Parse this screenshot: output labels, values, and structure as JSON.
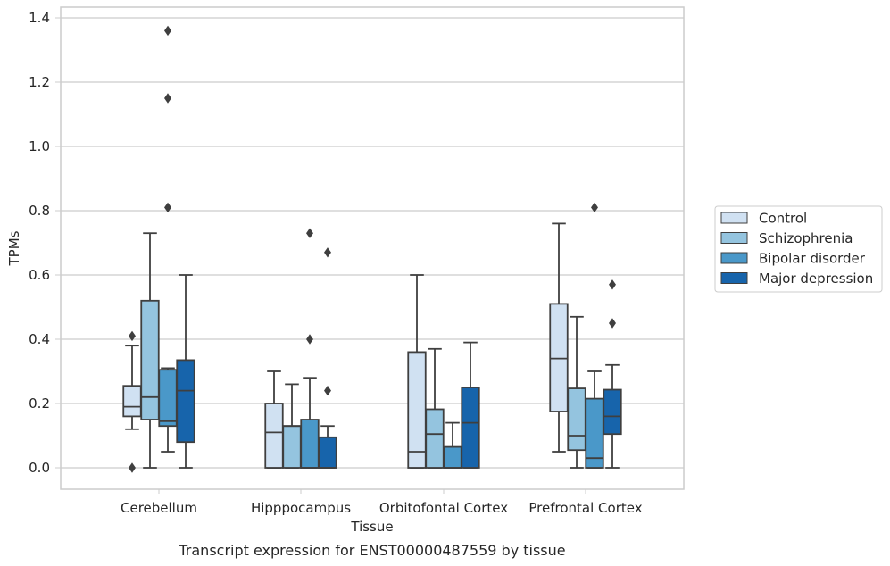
{
  "chart_data": {
    "type": "box",
    "xlabel": "Tissue",
    "ylabel": "TPMs",
    "caption": "Transcript expression for ENST00000487559 by tissue",
    "ylim": [
      -0.065,
      1.43
    ],
    "yticks": [
      0.0,
      0.2,
      0.4,
      0.6,
      0.8,
      1.0,
      1.2,
      1.4
    ],
    "ytick_labels": [
      "0.0",
      "0.2",
      "0.4",
      "0.6",
      "0.8",
      "1.0",
      "1.2",
      "1.4"
    ],
    "grid": "horizontal",
    "legend_placement": "right",
    "categories": [
      "Cerebellum",
      "Hipppocampus",
      "Orbitofontal Cortex",
      "Prefrontal Cortex"
    ],
    "series": [
      {
        "name": "Control",
        "color": "#d0e1f2",
        "boxes": [
          {
            "whisker_low": 0.12,
            "q1": 0.16,
            "median": 0.19,
            "q3": 0.255,
            "whisker_high": 0.38,
            "outliers": [
              0.41,
              0.0
            ]
          },
          {
            "whisker_low": 0.0,
            "q1": 0.0,
            "median": 0.11,
            "q3": 0.2,
            "whisker_high": 0.3,
            "outliers": []
          },
          {
            "whisker_low": 0.0,
            "q1": 0.0,
            "median": 0.05,
            "q3": 0.36,
            "whisker_high": 0.6,
            "outliers": []
          },
          {
            "whisker_low": 0.05,
            "q1": 0.175,
            "median": 0.34,
            "q3": 0.51,
            "whisker_high": 0.76,
            "outliers": []
          }
        ]
      },
      {
        "name": "Schizophrenia",
        "color": "#94c4df",
        "boxes": [
          {
            "whisker_low": 0.0,
            "q1": 0.15,
            "median": 0.22,
            "q3": 0.52,
            "whisker_high": 0.73,
            "outliers": []
          },
          {
            "whisker_low": 0.0,
            "q1": 0.0,
            "median": 0.13,
            "q3": 0.13,
            "whisker_high": 0.26,
            "outliers": []
          },
          {
            "whisker_low": 0.0,
            "q1": 0.0,
            "median": 0.105,
            "q3": 0.182,
            "whisker_high": 0.37,
            "outliers": []
          },
          {
            "whisker_low": 0.0,
            "q1": 0.055,
            "median": 0.1,
            "q3": 0.247,
            "whisker_high": 0.47,
            "outliers": []
          }
        ]
      },
      {
        "name": "Bipolar disorder",
        "color": "#4a98c9",
        "boxes": [
          {
            "whisker_low": 0.05,
            "q1": 0.13,
            "median": 0.145,
            "q3": 0.305,
            "whisker_high": 0.31,
            "outliers": [
              0.81,
              1.15,
              1.36
            ]
          },
          {
            "whisker_low": 0.0,
            "q1": 0.0,
            "median": 0.0,
            "q3": 0.15,
            "whisker_high": 0.28,
            "outliers": [
              0.4,
              0.73
            ]
          },
          {
            "whisker_low": 0.0,
            "q1": 0.0,
            "median": 0.0,
            "q3": 0.065,
            "whisker_high": 0.14,
            "outliers": []
          },
          {
            "whisker_low": 0.0,
            "q1": 0.0,
            "median": 0.03,
            "q3": 0.215,
            "whisker_high": 0.3,
            "outliers": [
              0.81
            ]
          }
        ]
      },
      {
        "name": "Major depression",
        "color": "#1764ab",
        "boxes": [
          {
            "whisker_low": 0.0,
            "q1": 0.08,
            "median": 0.24,
            "q3": 0.335,
            "whisker_high": 0.6,
            "outliers": []
          },
          {
            "whisker_low": 0.0,
            "q1": 0.0,
            "median": 0.0,
            "q3": 0.095,
            "whisker_high": 0.13,
            "outliers": [
              0.24,
              0.67
            ]
          },
          {
            "whisker_low": 0.0,
            "q1": 0.0,
            "median": 0.14,
            "q3": 0.25,
            "whisker_high": 0.39,
            "outliers": []
          },
          {
            "whisker_low": 0.0,
            "q1": 0.105,
            "median": 0.16,
            "q3": 0.243,
            "whisker_high": 0.32,
            "outliers": [
              0.45,
              0.57
            ]
          }
        ]
      }
    ]
  }
}
